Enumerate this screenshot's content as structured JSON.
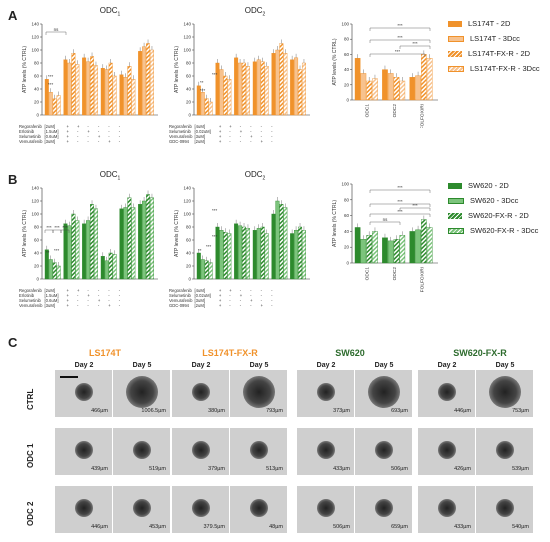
{
  "panels": {
    "A": {
      "letter": "A",
      "titles": [
        "ODC",
        "1",
        "ODC",
        "2"
      ],
      "legend": [
        "LS174T - 2D",
        "LS174T - 3Dcc",
        "LS174T-FX-R - 2D",
        "LS174T-FX-R - 3Dcc"
      ],
      "ylabel": "ATP levels (% CTRL)",
      "sum_xlabels": [
        "ODC1",
        "ODC2",
        "FOLFOXIRI"
      ]
    },
    "B": {
      "letter": "B",
      "legend": [
        "SW620 - 2D",
        "SW620 - 3Dcc",
        "SW620-FX-R - 2D",
        "SW620-FX-R - 3Dcc"
      ],
      "ylabel": "ATP levels (% CTRL)",
      "sum_xlabels": [
        "ODC1",
        "ODC2",
        "FOLFOXIRI"
      ]
    },
    "C": {
      "letter": "C",
      "lines": [
        "LS174T",
        "LS174T-FX-R",
        "SW620",
        "SW620-FX-R"
      ],
      "days": [
        "Day 2",
        "Day 5"
      ],
      "rows": [
        "CTRL",
        "ODC 1",
        "ODC 2"
      ],
      "sizes": [
        [
          [
            "466µm",
            "1006.5µm"
          ],
          [
            "380µm",
            "793µm"
          ],
          [
            "373µm",
            "693µm"
          ],
          [
            "446µm",
            "753µm"
          ]
        ],
        [
          [
            "439µm",
            "519µm"
          ],
          [
            "379µm",
            "513µm"
          ],
          [
            "433µm",
            "506µm"
          ],
          [
            "426µm",
            "539µm"
          ]
        ],
        [
          [
            "446µm",
            "453µm"
          ],
          [
            "379.5µm",
            "48µm"
          ],
          [
            "506µm",
            "659µm"
          ],
          [
            "433µm",
            "540µm"
          ]
        ]
      ]
    }
  },
  "drugs_A1": [
    [
      "Regorafenib",
      "[2uM]"
    ],
    [
      "Erlotinib",
      "[1.5uM]"
    ],
    [
      "Selumetinib",
      "[0.6uM]"
    ],
    [
      "Vemurafenib",
      "[3uM]"
    ]
  ],
  "drugs_A2": [
    [
      "Regorafenib",
      "[4uM]"
    ],
    [
      "Selumetinib",
      "[0.02uM]"
    ],
    [
      "Vemurafenib",
      "[3uM]"
    ],
    [
      "GDC-0994",
      "[2uM]"
    ]
  ],
  "sig": {
    "ns": "ns",
    "p3": "***",
    "p2": "**",
    "p1": "*"
  },
  "ticks": [
    "0",
    "20",
    "40",
    "60",
    "80",
    "100",
    "120",
    "140"
  ],
  "colors": {
    "orange": "#f0922b",
    "orange_light": "#f7c28e",
    "green": "#2d8a2d",
    "green_light": "#7cc47c"
  },
  "chart_data": [
    {
      "type": "bar",
      "panel": "A-ODC1",
      "ylim": [
        0,
        140
      ],
      "series": [
        {
          "name": "LS174T - 2D",
          "values": [
            55,
            85,
            88,
            72,
            62,
            98
          ]
        },
        {
          "name": "LS174T - 3Dcc",
          "values": [
            35,
            80,
            82,
            70,
            58,
            105
          ]
        },
        {
          "name": "LS174T-FX-R - 2D",
          "values": [
            25,
            95,
            90,
            80,
            75,
            110
          ]
        },
        {
          "name": "LS174T-FX-R - 3Dcc",
          "values": [
            30,
            78,
            76,
            60,
            55,
            100
          ]
        }
      ]
    },
    {
      "type": "bar",
      "panel": "A-ODC2",
      "ylim": [
        0,
        140
      ],
      "series": [
        {
          "name": "LS174T - 2D",
          "values": [
            45,
            80,
            88,
            82,
            95,
            85
          ]
        },
        {
          "name": "LS174T - 3Dcc",
          "values": [
            35,
            70,
            80,
            85,
            100,
            88
          ]
        },
        {
          "name": "LS174T-FX-R - 2D",
          "values": [
            25,
            60,
            80,
            82,
            110,
            70
          ]
        },
        {
          "name": "LS174T-FX-R - 3Dcc",
          "values": [
            20,
            55,
            75,
            75,
            95,
            80
          ]
        }
      ]
    },
    {
      "type": "bar",
      "panel": "A-summary",
      "ylim": [
        0,
        100
      ],
      "categories": [
        "ODC1",
        "ODC2",
        "FOLFOXIRI"
      ],
      "series": [
        {
          "name": "LS174T - 2D",
          "values": [
            55,
            40,
            30
          ]
        },
        {
          "name": "LS174T - 3Dcc",
          "values": [
            35,
            35,
            32
          ]
        },
        {
          "name": "LS174T-FX-R - 2D",
          "values": [
            25,
            30,
            60
          ]
        },
        {
          "name": "LS174T-FX-R - 3Dcc",
          "values": [
            28,
            25,
            55
          ]
        }
      ]
    },
    {
      "type": "bar",
      "panel": "B-ODC1",
      "ylim": [
        0,
        140
      ],
      "series": [
        {
          "name": "SW620 - 2D",
          "values": [
            45,
            85,
            85,
            35,
            108,
            115
          ]
        },
        {
          "name": "SW620 - 3Dcc",
          "values": [
            30,
            82,
            90,
            28,
            110,
            120
          ]
        },
        {
          "name": "SW620-FX-R - 2D",
          "values": [
            25,
            100,
            115,
            40,
            125,
            130
          ]
        },
        {
          "name": "SW620-FX-R - 3Dcc",
          "values": [
            20,
            90,
            108,
            38,
            110,
            125
          ]
        }
      ]
    },
    {
      "type": "bar",
      "panel": "B-ODC2",
      "ylim": [
        0,
        140
      ],
      "series": [
        {
          "name": "SW620 - 2D",
          "values": [
            40,
            80,
            85,
            75,
            100,
            70
          ]
        },
        {
          "name": "SW620 - 3Dcc",
          "values": [
            30,
            75,
            82,
            78,
            120,
            75
          ]
        },
        {
          "name": "SW620-FX-R - 2D",
          "values": [
            28,
            72,
            80,
            80,
            115,
            80
          ]
        },
        {
          "name": "SW620-FX-R - 3Dcc",
          "values": [
            25,
            70,
            78,
            70,
            110,
            75
          ]
        }
      ]
    },
    {
      "type": "bar",
      "panel": "B-summary",
      "ylim": [
        0,
        100
      ],
      "categories": [
        "ODC1",
        "ODC2",
        "FOLFOXIRI"
      ],
      "series": [
        {
          "name": "SW620 - 2D",
          "values": [
            45,
            32,
            40
          ]
        },
        {
          "name": "SW620 - 3Dcc",
          "values": [
            30,
            28,
            42
          ]
        },
        {
          "name": "SW620-FX-R - 2D",
          "values": [
            35,
            30,
            55
          ]
        },
        {
          "name": "SW620-FX-R - 3Dcc",
          "values": [
            40,
            35,
            45
          ]
        }
      ]
    }
  ]
}
